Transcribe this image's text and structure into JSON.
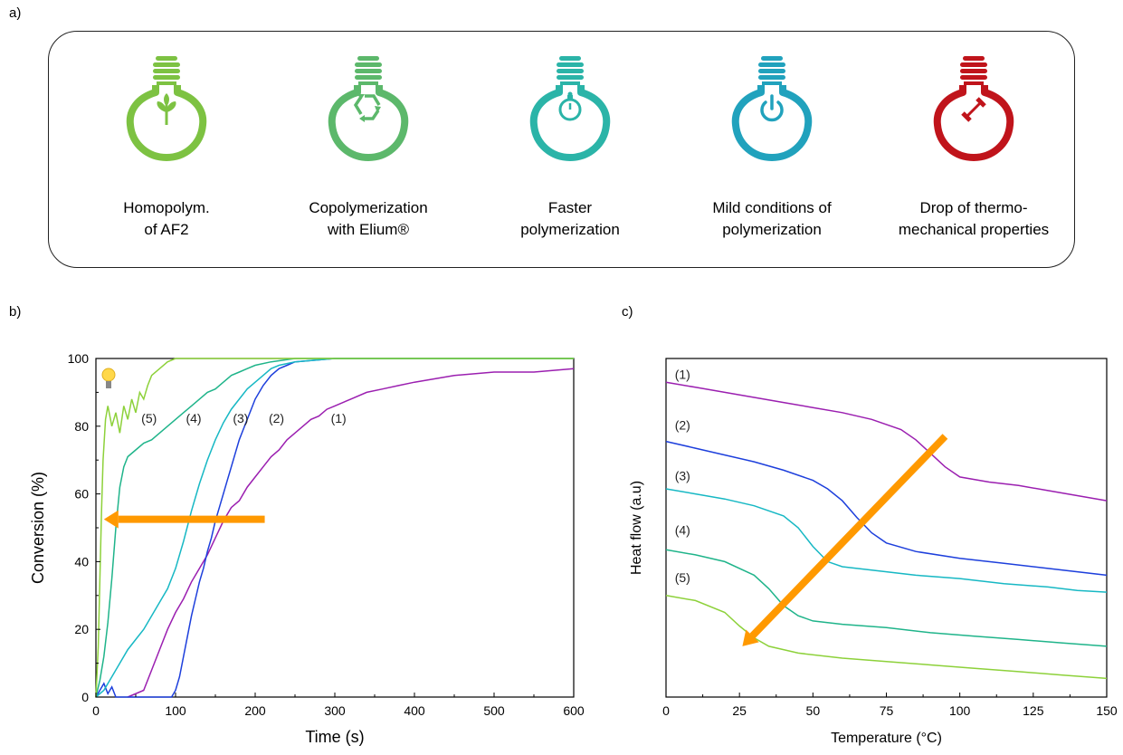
{
  "panel_labels": {
    "a": "a)",
    "b": "b)",
    "c": "c)"
  },
  "features": [
    {
      "icon": "sprout-icon",
      "color": "#7dc242",
      "line1": "Homopolym.",
      "line2": "of AF2"
    },
    {
      "icon": "recycle-icon",
      "color": "#5cb86b",
      "line1": "Copolymerization",
      "line2": "with Elium®"
    },
    {
      "icon": "stopwatch-icon",
      "color": "#2bb4a8",
      "line1": "Faster",
      "line2": "polymerization"
    },
    {
      "icon": "power-icon",
      "color": "#21a2bd",
      "line1": "Mild conditions of",
      "line2": "polymerization"
    },
    {
      "icon": "dumbbell-icon",
      "color": "#c0141b",
      "line1": "Drop of thermo-",
      "line2": "mechanical properties"
    }
  ],
  "chart_data": [
    {
      "type": "line",
      "xlabel": "Time (s)",
      "ylabel": "Conversion (%)",
      "xlim": [
        0,
        600
      ],
      "ylim": [
        0,
        100
      ],
      "xticks": [
        0,
        100,
        200,
        300,
        400,
        500,
        600
      ],
      "yticks": [
        0,
        20,
        40,
        60,
        80,
        100
      ],
      "grid": false,
      "marker_icon": "lightbulb-icon",
      "arrow": {
        "color": "#ff9900",
        "direction": "left",
        "from": [
          212,
          52.5
        ],
        "to": [
          10,
          52.5
        ]
      },
      "series": [
        {
          "name": "(1)",
          "color": "#9b1fb0",
          "label_at": [
            295,
            81
          ],
          "points": [
            [
              40,
              0
            ],
            [
              60,
              2
            ],
            [
              70,
              8
            ],
            [
              80,
              14
            ],
            [
              90,
              20
            ],
            [
              100,
              25
            ],
            [
              110,
              29
            ],
            [
              120,
              34
            ],
            [
              130,
              38
            ],
            [
              140,
              42
            ],
            [
              150,
              47
            ],
            [
              160,
              52
            ],
            [
              170,
              56
            ],
            [
              180,
              58
            ],
            [
              190,
              62
            ],
            [
              200,
              65
            ],
            [
              210,
              68
            ],
            [
              220,
              71
            ],
            [
              230,
              73
            ],
            [
              240,
              76
            ],
            [
              250,
              78
            ],
            [
              260,
              80
            ],
            [
              270,
              82
            ],
            [
              280,
              83
            ],
            [
              290,
              85
            ],
            [
              300,
              86
            ],
            [
              320,
              88
            ],
            [
              340,
              90
            ],
            [
              360,
              91
            ],
            [
              380,
              92
            ],
            [
              400,
              93
            ],
            [
              450,
              95
            ],
            [
              500,
              96
            ],
            [
              550,
              96
            ],
            [
              600,
              97
            ]
          ]
        },
        {
          "name": "(2)",
          "color": "#1d3fdc",
          "label_at": [
            217,
            81
          ],
          "points": [
            [
              0,
              0
            ],
            [
              5,
              2
            ],
            [
              10,
              4
            ],
            [
              15,
              1
            ],
            [
              20,
              3
            ],
            [
              25,
              0
            ],
            [
              95,
              0
            ],
            [
              100,
              2
            ],
            [
              105,
              6
            ],
            [
              110,
              12
            ],
            [
              115,
              18
            ],
            [
              120,
              24
            ],
            [
              125,
              29
            ],
            [
              130,
              34
            ],
            [
              135,
              38
            ],
            [
              140,
              43
            ],
            [
              145,
              47
            ],
            [
              150,
              52
            ],
            [
              155,
              56
            ],
            [
              160,
              60
            ],
            [
              165,
              64
            ],
            [
              170,
              68
            ],
            [
              175,
              72
            ],
            [
              180,
              76
            ],
            [
              185,
              79
            ],
            [
              190,
              82
            ],
            [
              195,
              85
            ],
            [
              200,
              88
            ],
            [
              210,
              92
            ],
            [
              220,
              95
            ],
            [
              230,
              97
            ],
            [
              240,
              98
            ],
            [
              250,
              99
            ],
            [
              300,
              100
            ],
            [
              600,
              100
            ]
          ]
        },
        {
          "name": "(3)",
          "color": "#17b8c4",
          "label_at": [
            172,
            81
          ],
          "points": [
            [
              0,
              0
            ],
            [
              10,
              2
            ],
            [
              20,
              6
            ],
            [
              30,
              10
            ],
            [
              40,
              14
            ],
            [
              50,
              17
            ],
            [
              60,
              20
            ],
            [
              70,
              24
            ],
            [
              80,
              28
            ],
            [
              90,
              32
            ],
            [
              100,
              38
            ],
            [
              110,
              46
            ],
            [
              120,
              55
            ],
            [
              130,
              63
            ],
            [
              140,
              70
            ],
            [
              150,
              76
            ],
            [
              160,
              81
            ],
            [
              170,
              85
            ],
            [
              180,
              88
            ],
            [
              190,
              91
            ],
            [
              200,
              93
            ],
            [
              210,
              95
            ],
            [
              220,
              97
            ],
            [
              230,
              98
            ],
            [
              250,
              99
            ],
            [
              300,
              100
            ],
            [
              600,
              100
            ]
          ]
        },
        {
          "name": "(4)",
          "color": "#1fb48a",
          "label_at": [
            113,
            81
          ],
          "points": [
            [
              0,
              0
            ],
            [
              5,
              5
            ],
            [
              10,
              12
            ],
            [
              15,
              22
            ],
            [
              20,
              35
            ],
            [
              25,
              50
            ],
            [
              30,
              62
            ],
            [
              35,
              68
            ],
            [
              40,
              71
            ],
            [
              50,
              73
            ],
            [
              60,
              75
            ],
            [
              70,
              76
            ],
            [
              80,
              78
            ],
            [
              90,
              80
            ],
            [
              100,
              82
            ],
            [
              110,
              84
            ],
            [
              120,
              86
            ],
            [
              130,
              88
            ],
            [
              140,
              90
            ],
            [
              150,
              91
            ],
            [
              160,
              93
            ],
            [
              170,
              95
            ],
            [
              180,
              96
            ],
            [
              190,
              97
            ],
            [
              200,
              98
            ],
            [
              220,
              99
            ],
            [
              250,
              100
            ],
            [
              600,
              100
            ]
          ]
        },
        {
          "name": "(5)",
          "color": "#8dd13a",
          "label_at": [
            57,
            81
          ],
          "points": [
            [
              0,
              0
            ],
            [
              3,
              15
            ],
            [
              5,
              35
            ],
            [
              7,
              55
            ],
            [
              9,
              70
            ],
            [
              12,
              82
            ],
            [
              15,
              86
            ],
            [
              20,
              80
            ],
            [
              25,
              84
            ],
            [
              30,
              78
            ],
            [
              35,
              86
            ],
            [
              40,
              82
            ],
            [
              45,
              88
            ],
            [
              50,
              84
            ],
            [
              55,
              90
            ],
            [
              60,
              88
            ],
            [
              65,
              92
            ],
            [
              70,
              95
            ],
            [
              80,
              97
            ],
            [
              90,
              99
            ],
            [
              100,
              100
            ],
            [
              600,
              100
            ]
          ]
        }
      ]
    },
    {
      "type": "line",
      "xlabel": "Temperature (°C)",
      "ylabel": "Heat flow (a.u)",
      "xlim": [
        0,
        150
      ],
      "ylim": [
        0,
        100
      ],
      "xticks": [
        0,
        25,
        50,
        75,
        100,
        125,
        150
      ],
      "grid": false,
      "arrow": {
        "color": "#ff9900",
        "direction": "down-left",
        "from": [
          95,
          77
        ],
        "to": [
          26,
          15
        ]
      },
      "series": [
        {
          "name": "(1)",
          "color": "#9b1fb0",
          "label_at": [
            3,
            94
          ],
          "points": [
            [
              0,
              93
            ],
            [
              10,
              91.5
            ],
            [
              20,
              90
            ],
            [
              30,
              88.5
            ],
            [
              40,
              87
            ],
            [
              50,
              85.5
            ],
            [
              60,
              84
            ],
            [
              70,
              82
            ],
            [
              80,
              79
            ],
            [
              85,
              76
            ],
            [
              90,
              72
            ],
            [
              95,
              68
            ],
            [
              100,
              65
            ],
            [
              110,
              63.5
            ],
            [
              120,
              62.5
            ],
            [
              130,
              61
            ],
            [
              140,
              59.5
            ],
            [
              150,
              58
            ]
          ]
        },
        {
          "name": "(2)",
          "color": "#1d3fdc",
          "label_at": [
            3,
            79
          ],
          "points": [
            [
              0,
              75.5
            ],
            [
              10,
              73.5
            ],
            [
              20,
              71.5
            ],
            [
              30,
              69.5
            ],
            [
              40,
              67
            ],
            [
              50,
              64
            ],
            [
              55,
              61.5
            ],
            [
              60,
              58
            ],
            [
              65,
              53
            ],
            [
              70,
              48.5
            ],
            [
              75,
              45.5
            ],
            [
              85,
              43
            ],
            [
              100,
              41
            ],
            [
              115,
              39.5
            ],
            [
              130,
              38
            ],
            [
              150,
              36
            ]
          ]
        },
        {
          "name": "(3)",
          "color": "#17b8c4",
          "label_at": [
            3,
            64
          ],
          "points": [
            [
              0,
              61.5
            ],
            [
              10,
              60
            ],
            [
              20,
              58.5
            ],
            [
              30,
              56.5
            ],
            [
              40,
              53.5
            ],
            [
              45,
              50
            ],
            [
              50,
              44.5
            ],
            [
              55,
              40
            ],
            [
              60,
              38.5
            ],
            [
              70,
              37.5
            ],
            [
              85,
              36
            ],
            [
              100,
              35
            ],
            [
              115,
              33.5
            ],
            [
              130,
              32.5
            ],
            [
              140,
              31.5
            ],
            [
              150,
              31
            ]
          ]
        },
        {
          "name": "(4)",
          "color": "#1fb48a",
          "label_at": [
            3,
            48
          ],
          "points": [
            [
              0,
              43.5
            ],
            [
              10,
              42
            ],
            [
              20,
              40
            ],
            [
              30,
              36
            ],
            [
              35,
              32
            ],
            [
              40,
              27
            ],
            [
              45,
              24
            ],
            [
              50,
              22.5
            ],
            [
              60,
              21.5
            ],
            [
              75,
              20.5
            ],
            [
              90,
              19
            ],
            [
              105,
              18
            ],
            [
              120,
              17
            ],
            [
              135,
              16
            ],
            [
              150,
              15
            ]
          ]
        },
        {
          "name": "(5)",
          "color": "#8dd13a",
          "label_at": [
            3,
            34
          ],
          "points": [
            [
              0,
              30
            ],
            [
              10,
              28.5
            ],
            [
              20,
              25
            ],
            [
              25,
              21
            ],
            [
              30,
              17.5
            ],
            [
              35,
              15
            ],
            [
              45,
              13
            ],
            [
              60,
              11.5
            ],
            [
              75,
              10.5
            ],
            [
              90,
              9.5
            ],
            [
              105,
              8.5
            ],
            [
              120,
              7.5
            ],
            [
              135,
              6.5
            ],
            [
              150,
              5.5
            ]
          ]
        }
      ]
    }
  ]
}
